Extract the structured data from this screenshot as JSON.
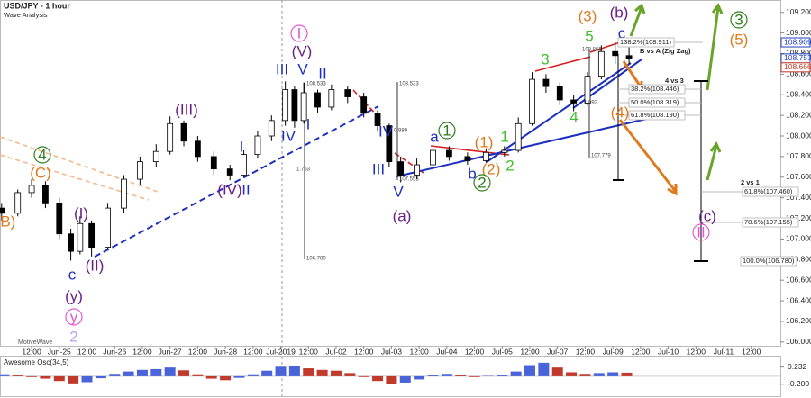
{
  "chart_data": {
    "type": "candlestick",
    "title": "USD/JPY - 1 hour",
    "subtitle": "Wave Analysis",
    "watermark": "MotiveWave",
    "x": [
      -13,
      -6,
      0,
      6,
      12,
      17,
      21,
      26,
      33,
      40,
      47,
      54,
      60,
      66,
      72,
      79,
      86,
      92,
      98,
      104,
      110,
      114,
      118,
      124,
      130,
      137,
      144,
      150,
      155,
      160,
      167,
      174,
      181,
      189,
      197,
      205,
      211,
      217,
      223,
      229,
      235,
      241,
      247,
      253,
      259
    ],
    "open": [
      107.3,
      107.25,
      107.45,
      107.52,
      107.35,
      107.05,
      106.88,
      107.15,
      106.92,
      107.3,
      107.58,
      107.75,
      107.85,
      108.12,
      107.95,
      107.8,
      107.68,
      107.62,
      107.82,
      108.0,
      108.15,
      108.45,
      108.15,
      108.42,
      108.28,
      108.45,
      108.38,
      108.22,
      108.1,
      107.75,
      107.62,
      107.72,
      107.86,
      107.8,
      107.76,
      107.84,
      107.86,
      108.12,
      108.55,
      108.48,
      108.35,
      108.32,
      108.58,
      108.82,
      108.78
    ],
    "high": [
      107.35,
      107.48,
      107.58,
      107.56,
      107.4,
      107.1,
      107.22,
      107.18,
      107.35,
      107.62,
      107.8,
      107.92,
      108.19,
      108.15,
      108.0,
      107.85,
      107.72,
      107.86,
      108.05,
      108.2,
      108.53,
      108.48,
      108.52,
      108.45,
      108.5,
      108.48,
      108.42,
      108.25,
      108.12,
      107.8,
      107.78,
      107.9,
      107.9,
      107.84,
      107.88,
      107.9,
      108.18,
      108.62,
      108.6,
      108.52,
      108.4,
      108.62,
      108.88,
      108.91,
      108.86
    ],
    "low": [
      107.18,
      107.22,
      107.4,
      107.3,
      107.0,
      106.79,
      106.85,
      106.83,
      106.9,
      107.25,
      107.52,
      107.7,
      107.82,
      107.9,
      107.75,
      107.62,
      107.57,
      107.6,
      107.78,
      107.95,
      108.1,
      108.08,
      108.12,
      108.22,
      108.25,
      108.32,
      108.18,
      108.05,
      107.7,
      107.55,
      107.58,
      107.7,
      107.76,
      107.72,
      107.74,
      107.8,
      107.84,
      108.1,
      108.42,
      108.3,
      108.24,
      108.3,
      108.55,
      108.7,
      108.7
    ],
    "close": [
      107.25,
      107.45,
      107.52,
      107.35,
      107.05,
      106.88,
      107.15,
      106.92,
      107.3,
      107.58,
      107.75,
      107.85,
      108.12,
      107.95,
      107.8,
      107.68,
      107.62,
      107.82,
      108.0,
      108.15,
      108.45,
      108.15,
      108.42,
      108.28,
      108.45,
      108.38,
      108.22,
      108.1,
      107.75,
      107.62,
      107.72,
      107.86,
      107.8,
      107.76,
      107.84,
      107.86,
      108.12,
      108.55,
      108.48,
      108.35,
      108.32,
      108.58,
      108.82,
      108.78,
      108.75
    ],
    "xlim": [
      -13.7,
      324.6
    ],
    "xticks": [
      {
        "value": 0,
        "label": "12:00"
      },
      {
        "value": 12,
        "label": "Jun-25"
      },
      {
        "value": 24,
        "label": "12:00"
      },
      {
        "value": 36,
        "label": "Jun-26"
      },
      {
        "value": 48,
        "label": "12:00"
      },
      {
        "value": 60,
        "label": "Jun-27"
      },
      {
        "value": 72,
        "label": "12:00"
      },
      {
        "value": 84,
        "label": "Jun-28"
      },
      {
        "value": 96,
        "label": "12:00"
      },
      {
        "value": 108,
        "label": "Jul-2019"
      },
      {
        "value": 120,
        "label": "12:00"
      },
      {
        "value": 132,
        "label": "Jul-02"
      },
      {
        "value": 144,
        "label": "12:00"
      },
      {
        "value": 156,
        "label": "Jul-03"
      },
      {
        "value": 168,
        "label": "12:00"
      },
      {
        "value": 180,
        "label": "Jul-04"
      },
      {
        "value": 192,
        "label": "12:00"
      },
      {
        "value": 204,
        "label": "Jul-05"
      },
      {
        "value": 216,
        "label": "12:00"
      },
      {
        "value": 228,
        "label": "Jul-07"
      },
      {
        "value": 240,
        "label": "12:00"
      },
      {
        "value": 252,
        "label": "Jul-09"
      },
      {
        "value": 264,
        "label": "12:00"
      },
      {
        "value": 276,
        "label": "Jul-10"
      },
      {
        "value": 288,
        "label": "12:00"
      },
      {
        "value": 300,
        "label": "Jul-11"
      },
      {
        "value": 312,
        "label": "12:00"
      }
    ],
    "ylim": [
      105.96,
      109.32
    ],
    "yticks": [
      {
        "value": 109.2,
        "label": "109.200"
      },
      {
        "value": 109.0,
        "label": "109.000"
      },
      {
        "value": 108.8,
        "label": "108.800"
      },
      {
        "value": 108.6,
        "label": "108.600"
      },
      {
        "value": 108.4,
        "label": "108.400"
      },
      {
        "value": 108.2,
        "label": "108.200"
      },
      {
        "value": 108.0,
        "label": "108.000"
      },
      {
        "value": 107.8,
        "label": "107.800"
      },
      {
        "value": 107.6,
        "label": "107.600"
      },
      {
        "value": 107.4,
        "label": "107.400"
      },
      {
        "value": 107.2,
        "label": "107.200"
      },
      {
        "value": 107.0,
        "label": "107.000"
      },
      {
        "value": 106.8,
        "label": "106.800"
      },
      {
        "value": 106.6,
        "label": "106.600"
      },
      {
        "value": 106.4,
        "label": "106.400"
      },
      {
        "value": 106.2,
        "label": "106.200"
      },
      {
        "value": 106.0,
        "label": "106.000"
      }
    ],
    "price_markers": [
      {
        "value": 108.909,
        "label": "108.909",
        "color": "#1f3fbf"
      },
      {
        "value": 108.753,
        "label": "108.753",
        "color": "#1f3fbf"
      },
      {
        "value": 108.666,
        "label": "108.666",
        "color": "#c0392b"
      }
    ],
    "wave_labels": [
      "(B)",
      "4",
      "(C)",
      "(I)",
      "(II)",
      "c",
      "(y)",
      "y",
      "2",
      "(III)",
      "I",
      "(IV)",
      "II",
      "I",
      "(V)",
      "III",
      "V",
      "II",
      "IV",
      "I",
      "IV",
      "III",
      "V",
      "(a)",
      "a",
      "1",
      "(1)",
      "1",
      "(2)",
      "2",
      "b",
      "2",
      "3",
      "4",
      "5",
      "(3)",
      "(b)",
      "c",
      "(4)",
      "3",
      "(5)",
      "(c)",
      "II"
    ],
    "annotations": [
      "138.2%(108.911)",
      "B vs A (Zig Zag)",
      "4 vs 3",
      "38.2%(108.446)",
      "50.0%(108.319)",
      "61.8%(108.190)",
      "2 vs 1",
      "61.8%(107.460)",
      "78.6%(107.155)",
      "100.0%(106.780)"
    ],
    "measurements": [
      "108.533",
      "1.753",
      "106.780",
      "108.533",
      "0.989",
      "107.553",
      "108.866",
      "1.092",
      "107.779"
    ],
    "oscillator": {
      "title": "Awesome Osc(34,5)",
      "x": [
        -12,
        -6,
        0,
        6,
        12,
        18,
        24,
        30,
        36,
        42,
        48,
        54,
        60,
        66,
        72,
        78,
        84,
        90,
        96,
        102,
        108,
        114,
        120,
        126,
        132,
        138,
        144,
        150,
        156,
        162,
        168,
        174,
        180,
        186,
        192,
        198,
        204,
        210,
        216,
        222,
        228,
        234,
        240,
        246,
        252,
        258
      ],
      "values": [
        0.05,
        0.02,
        -0.02,
        -0.06,
        -0.12,
        -0.18,
        -0.15,
        -0.05,
        0.06,
        0.12,
        0.16,
        0.18,
        0.22,
        0.15,
        0.05,
        -0.06,
        -0.1,
        -0.04,
        0.05,
        0.14,
        0.24,
        0.26,
        0.2,
        0.16,
        0.14,
        0.08,
        -0.02,
        -0.12,
        -0.2,
        -0.16,
        -0.08,
        0.02,
        0.06,
        0.03,
        -0.02,
        0.01,
        0.04,
        0.12,
        0.28,
        0.34,
        0.22,
        0.1,
        0.06,
        0.08,
        0.1,
        0.09
      ],
      "ylim": [
        -0.5,
        0.45
      ],
      "yticks": [
        {
          "value": 0.232,
          "label": "0.232"
        },
        {
          "value": -0.2,
          "label": "-0.200"
        }
      ]
    }
  }
}
